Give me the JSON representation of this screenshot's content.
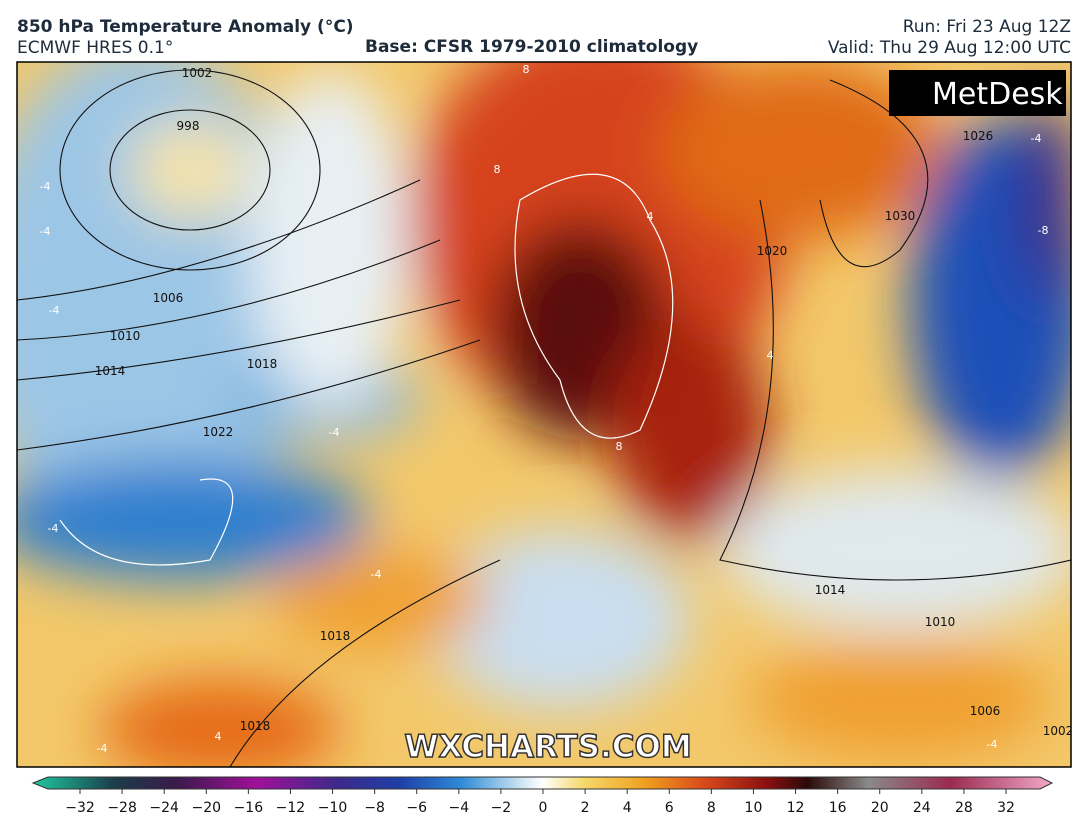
{
  "header": {
    "title": "850 hPa Temperature Anomaly (°C)",
    "model": "ECMWF HRES 0.1°",
    "base": "Base: CFSR 1979-2010 climatology",
    "run": "Run: Fri 23 Aug 12Z",
    "valid": "Valid: Thu 29 Aug 12:00 UTC"
  },
  "logo": "MetDesk",
  "watermark": "WXCHARTS.COM",
  "isobar_labels": [
    "1002",
    "998",
    "1006",
    "1010",
    "1014",
    "1018",
    "1022",
    "1026",
    "1030",
    "1020",
    "1014",
    "1010",
    "1018",
    "1018",
    "1006",
    "1002"
  ],
  "anomaly_labels": [
    "8",
    "8",
    "8",
    "-4",
    "-4",
    "-4",
    "-4",
    "-4",
    "-4",
    "4",
    "-4",
    "4",
    "-8",
    "-4",
    "4",
    "-4"
  ],
  "colorbar": {
    "ticks": [
      "−32",
      "−28",
      "−24",
      "−20",
      "−16",
      "−12",
      "−10",
      "−8",
      "−6",
      "−4",
      "−2",
      "0",
      "2",
      "4",
      "6",
      "8",
      "10",
      "12",
      "16",
      "20",
      "24",
      "28",
      "32"
    ]
  }
}
